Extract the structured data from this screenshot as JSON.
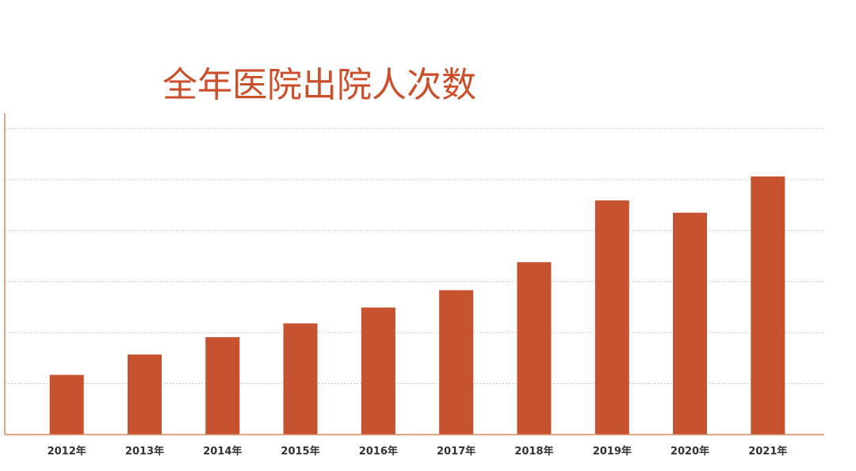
{
  "chart_data": {
    "type": "bar",
    "title": "全年医院出院人次数",
    "categories": [
      "2012年",
      "2013年",
      "2014年",
      "2015年",
      "2016年",
      "2017年",
      "2018年",
      "2019年",
      "2020年",
      "2021年"
    ],
    "values": [
      1.17,
      1.57,
      1.91,
      2.18,
      2.49,
      2.83,
      3.38,
      4.59,
      4.35,
      5.06
    ],
    "ylim": [
      0,
      6.3
    ],
    "y_gridline_step": 1,
    "y_tick_labels_shown": false,
    "grid": true,
    "legend": "none",
    "xlabel": "",
    "ylabel": ""
  },
  "colors": {
    "bar": "#c75230",
    "title": "#cc4e2a",
    "axis": "#d9895f",
    "grid": "#cfcfcf",
    "tick_label": "#333333"
  }
}
